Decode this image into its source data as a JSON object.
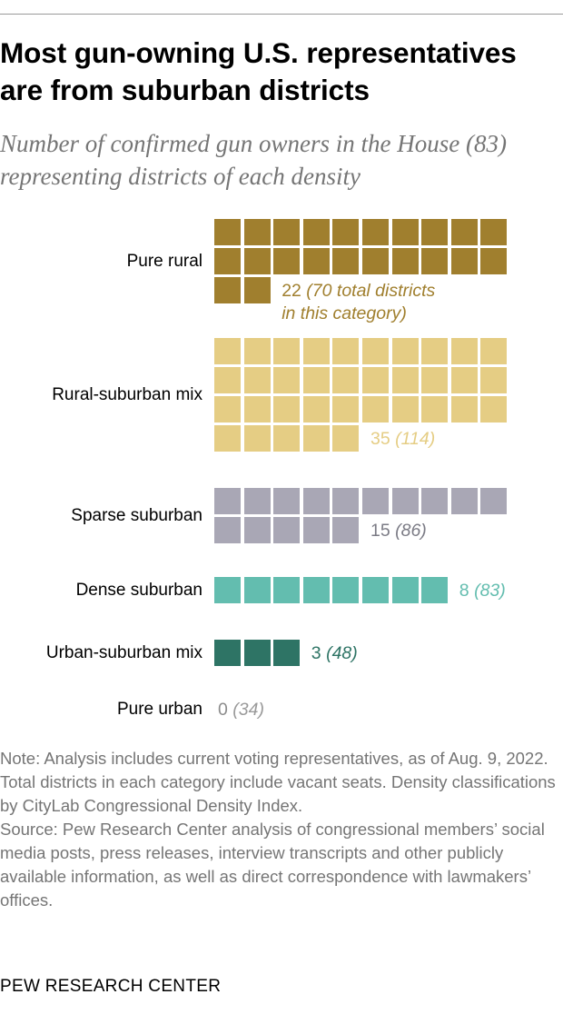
{
  "title": "Most gun-owning U.S. representatives are from suburban districts",
  "subtitle": "Number of confirmed gun owners in the House (83) representing districts of each density",
  "chart_data": {
    "type": "waffle",
    "unit": "confirmed gun owner",
    "categories": [
      "Pure rural",
      "Rural-suburban mix",
      "Sparse suburban",
      "Dense suburban",
      "Urban-suburban mix",
      "Pure urban"
    ],
    "values": [
      22,
      35,
      15,
      8,
      3,
      0
    ],
    "total_districts": [
      70,
      114,
      86,
      83,
      48,
      34
    ],
    "colors": [
      "#a07f2e",
      "#e5cd84",
      "#a9a7b5",
      "#63bdaf",
      "#2e7465",
      "#8c8c8c"
    ],
    "value_labels": [
      {
        "count": "22",
        "total": " (70 total districts",
        "total_line2": "in this category)"
      },
      {
        "count": "35",
        "total": " (114)"
      },
      {
        "count": "15",
        "total": " (86)"
      },
      {
        "count": "8",
        "total": " (83)"
      },
      {
        "count": "3",
        "total": " (48)"
      },
      {
        "count": "0",
        "total": " (34)"
      }
    ]
  },
  "notes": {
    "note": "Note: Analysis includes current voting representatives, as of Aug. 9, 2022. Total districts in each category include vacant seats. Density classifications by CityLab Congressional Density Index.",
    "source": "Source: Pew Research Center analysis of congressional members’ social media posts, press releases, interview transcripts and other publicly available information, as well as direct correspondence with lawmakers’ offices."
  },
  "footer": "PEW RESEARCH CENTER"
}
